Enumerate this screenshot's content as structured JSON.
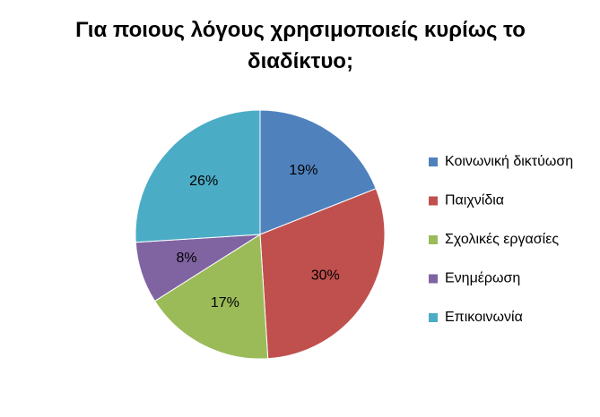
{
  "chart_data": {
    "type": "pie",
    "title": "Για ποιους λόγους χρησιμοποιείς κυρίως το διαδίκτυο;",
    "categories": [
      "Κοινωνική δικτύωση",
      "Παιχνίδια",
      "Σχολικές εργασίες",
      "Ενημέρωση",
      "Επικοινωνία"
    ],
    "values": [
      19,
      30,
      17,
      8,
      26
    ],
    "value_labels": [
      "19%",
      "30%",
      "17%",
      "8%",
      "26%"
    ],
    "colors": [
      "#4f81bd",
      "#c0504d",
      "#9bbb59",
      "#8064a2",
      "#4bacc6"
    ],
    "legend": "right"
  }
}
